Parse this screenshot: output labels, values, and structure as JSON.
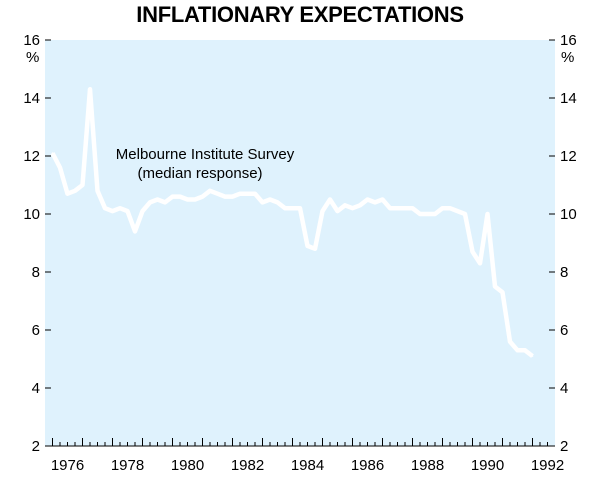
{
  "title": "INFLATIONARY EXPECTATIONS",
  "colors": {
    "plot_background": "#dff2fd",
    "line": "#ffffff",
    "axis": "#000000"
  },
  "chart_data": {
    "type": "line",
    "title": "INFLATIONARY EXPECTATIONS",
    "left_unit": "%",
    "right_unit": "%",
    "ylim": [
      2,
      16
    ],
    "y_ticks": [
      2,
      4,
      6,
      8,
      10,
      12,
      14,
      16
    ],
    "xlim": [
      1975.75,
      1992.75
    ],
    "x_tick_labels": [
      "1976",
      "1978",
      "1980",
      "1982",
      "1984",
      "1986",
      "1988",
      "1990",
      "1992"
    ],
    "annotation": [
      "Melbourne Institute Survey",
      "(median response)"
    ],
    "series": [
      {
        "name": "Melbourne Institute Survey (median response)",
        "points": [
          [
            1976.0,
            12.1
          ],
          [
            1976.25,
            11.6
          ],
          [
            1976.5,
            10.7
          ],
          [
            1976.75,
            10.8
          ],
          [
            1977.0,
            11.0
          ],
          [
            1977.25,
            14.3
          ],
          [
            1977.5,
            10.8
          ],
          [
            1977.75,
            10.2
          ],
          [
            1978.0,
            10.1
          ],
          [
            1978.25,
            10.2
          ],
          [
            1978.5,
            10.1
          ],
          [
            1978.75,
            9.4
          ],
          [
            1979.0,
            10.1
          ],
          [
            1979.25,
            10.4
          ],
          [
            1979.5,
            10.5
          ],
          [
            1979.75,
            10.4
          ],
          [
            1980.0,
            10.6
          ],
          [
            1980.25,
            10.6
          ],
          [
            1980.5,
            10.5
          ],
          [
            1980.75,
            10.5
          ],
          [
            1981.0,
            10.6
          ],
          [
            1981.25,
            10.8
          ],
          [
            1981.5,
            10.7
          ],
          [
            1981.75,
            10.6
          ],
          [
            1982.0,
            10.6
          ],
          [
            1982.25,
            10.7
          ],
          [
            1982.5,
            10.7
          ],
          [
            1982.75,
            10.7
          ],
          [
            1983.0,
            10.4
          ],
          [
            1983.25,
            10.5
          ],
          [
            1983.5,
            10.4
          ],
          [
            1983.75,
            10.2
          ],
          [
            1984.0,
            10.2
          ],
          [
            1984.25,
            10.2
          ],
          [
            1984.5,
            8.9
          ],
          [
            1984.75,
            8.8
          ],
          [
            1985.0,
            10.1
          ],
          [
            1985.25,
            10.5
          ],
          [
            1985.5,
            10.1
          ],
          [
            1985.75,
            10.3
          ],
          [
            1986.0,
            10.2
          ],
          [
            1986.25,
            10.3
          ],
          [
            1986.5,
            10.5
          ],
          [
            1986.75,
            10.4
          ],
          [
            1987.0,
            10.5
          ],
          [
            1987.25,
            10.2
          ],
          [
            1987.5,
            10.2
          ],
          [
            1987.75,
            10.2
          ],
          [
            1988.0,
            10.2
          ],
          [
            1988.25,
            10.0
          ],
          [
            1988.5,
            10.0
          ],
          [
            1988.75,
            10.0
          ],
          [
            1989.0,
            10.2
          ],
          [
            1989.25,
            10.2
          ],
          [
            1989.5,
            10.1
          ],
          [
            1989.75,
            10.0
          ],
          [
            1990.0,
            8.7
          ],
          [
            1990.25,
            8.3
          ],
          [
            1990.5,
            10.0
          ],
          [
            1990.75,
            7.5
          ],
          [
            1991.0,
            7.3
          ],
          [
            1991.25,
            5.6
          ],
          [
            1991.5,
            5.3
          ],
          [
            1991.75,
            5.3
          ],
          [
            1992.0,
            5.1
          ]
        ]
      }
    ]
  }
}
